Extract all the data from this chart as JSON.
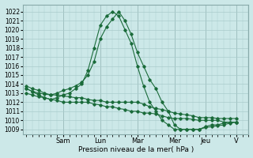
{
  "title": "Pression niveau de la mer( hPa )",
  "bg_color": "#cce8e8",
  "grid_color": "#aacccc",
  "line_color": "#1a6b3a",
  "ylim": [
    1008.5,
    1022.8
  ],
  "yticks": [
    1009,
    1010,
    1011,
    1012,
    1013,
    1014,
    1015,
    1016,
    1017,
    1018,
    1019,
    1020,
    1021,
    1022
  ],
  "x_day_labels": [
    "Sam",
    "Lun",
    "Mar",
    "Mer",
    "Jeu",
    "V"
  ],
  "x_day_positions": [
    6,
    12,
    18,
    24,
    29,
    34
  ],
  "xlim": [
    -0.5,
    36
  ],
  "lines": [
    {
      "x": [
        0,
        1,
        2,
        3,
        4,
        5,
        6,
        7,
        8,
        9,
        10,
        11,
        12,
        13,
        14,
        15,
        16,
        17,
        18,
        19,
        20,
        21,
        22,
        23,
        24,
        25,
        26,
        27,
        28,
        29,
        30,
        31,
        32,
        33,
        34
      ],
      "y": [
        1013.5,
        1013.2,
        1013.0,
        1012.9,
        1012.8,
        1013.0,
        1013.3,
        1013.5,
        1013.8,
        1014.2,
        1015.0,
        1016.5,
        1019.0,
        1020.3,
        1021.2,
        1022.0,
        1021.0,
        1019.5,
        1017.5,
        1016.0,
        1014.5,
        1013.5,
        1012.0,
        1011.0,
        1009.5,
        1009.0,
        1009.0,
        1009.0,
        1009.0,
        1009.2,
        1009.3,
        1009.4,
        1009.5,
        1009.7,
        1009.8
      ]
    },
    {
      "x": [
        0,
        1,
        2,
        3,
        4,
        5,
        6,
        7,
        8,
        9,
        10,
        11,
        12,
        13,
        14,
        15,
        16,
        17,
        18,
        19,
        20,
        21,
        22,
        23,
        24,
        25,
        26,
        27,
        28,
        29,
        30,
        31,
        32,
        33,
        34
      ],
      "y": [
        1013.0,
        1012.8,
        1012.6,
        1012.5,
        1012.3,
        1012.5,
        1012.8,
        1013.0,
        1013.5,
        1014.0,
        1015.5,
        1018.0,
        1020.5,
        1021.5,
        1022.0,
        1021.5,
        1020.0,
        1018.5,
        1016.0,
        1013.8,
        1012.0,
        1011.0,
        1010.0,
        1009.5,
        1009.0,
        1009.0,
        1009.0,
        1009.0,
        1009.0,
        1009.3,
        1009.5,
        1009.5,
        1009.7,
        1009.8,
        1009.8
      ]
    },
    {
      "x": [
        0,
        1,
        2,
        3,
        4,
        5,
        6,
        7,
        8,
        9,
        10,
        11,
        12,
        13,
        14,
        15,
        16,
        17,
        18,
        19,
        20,
        21,
        22,
        23,
        24,
        25,
        26,
        27,
        28,
        29,
        30,
        31,
        32,
        33,
        34
      ],
      "y": [
        1013.5,
        1013.2,
        1012.8,
        1012.5,
        1012.3,
        1012.2,
        1012.0,
        1012.0,
        1012.0,
        1012.0,
        1012.0,
        1011.8,
        1011.7,
        1011.5,
        1011.5,
        1011.3,
        1011.2,
        1011.0,
        1011.0,
        1010.8,
        1010.8,
        1010.7,
        1010.5,
        1010.3,
        1010.2,
        1010.2,
        1010.2,
        1010.1,
        1010.0,
        1010.0,
        1010.0,
        1010.0,
        1009.8,
        1009.8,
        1009.8
      ]
    },
    {
      "x": [
        0,
        1,
        2,
        3,
        4,
        5,
        6,
        7,
        8,
        9,
        10,
        11,
        12,
        13,
        14,
        15,
        16,
        17,
        18,
        19,
        20,
        21,
        22,
        23,
        24,
        25,
        26,
        27,
        28,
        29,
        30,
        31,
        32,
        33,
        34
      ],
      "y": [
        1013.8,
        1013.5,
        1013.3,
        1013.0,
        1012.8,
        1012.8,
        1012.7,
        1012.6,
        1012.5,
        1012.5,
        1012.3,
        1012.2,
        1012.2,
        1012.0,
        1012.0,
        1012.0,
        1012.0,
        1012.0,
        1012.0,
        1011.8,
        1011.5,
        1011.3,
        1011.2,
        1011.0,
        1010.8,
        1010.7,
        1010.6,
        1010.5,
        1010.3,
        1010.3,
        1010.3,
        1010.2,
        1010.2,
        1010.2,
        1010.2
      ]
    }
  ]
}
